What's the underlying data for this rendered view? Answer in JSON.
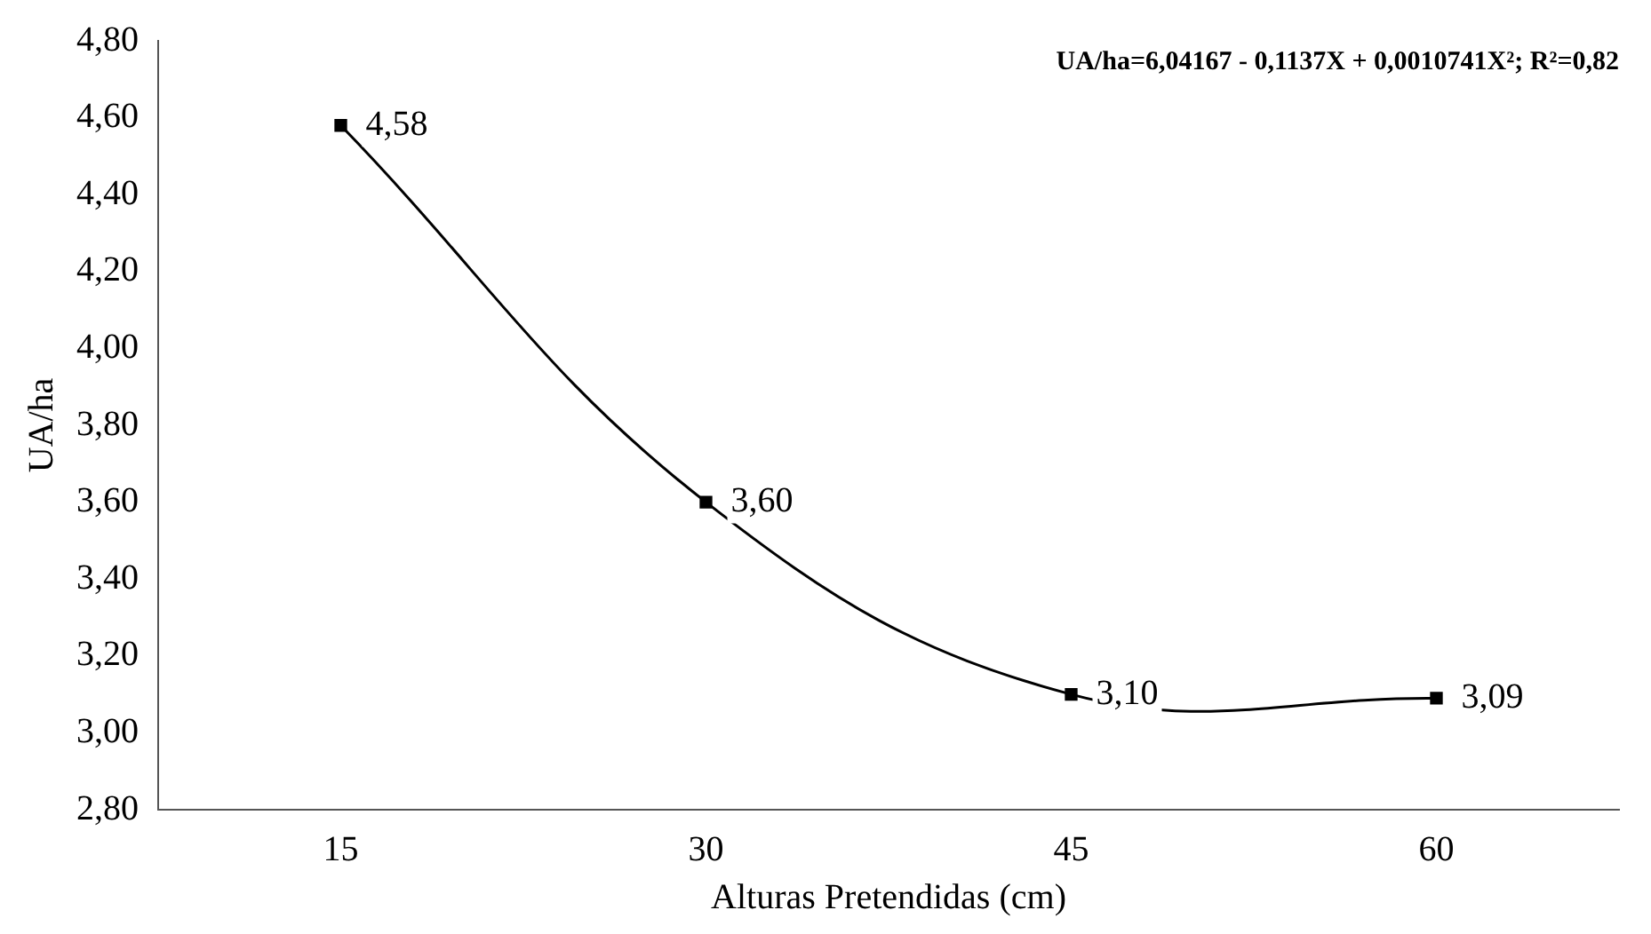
{
  "chart_data": {
    "type": "line",
    "xlabel": "Alturas Pretendidas (cm)",
    "ylabel": "UA/ha",
    "categories": [
      "15",
      "30",
      "45",
      "60"
    ],
    "series": [
      {
        "color": "#000000",
        "values": [
          4.58,
          3.6,
          3.1,
          3.09
        ],
        "value_labels": [
          "4,58",
          "3,60",
          "3,10",
          "3,09"
        ]
      }
    ],
    "ylim": [
      2.8,
      4.8
    ],
    "yticks": [
      {
        "value": 2.8,
        "label": "2,80"
      },
      {
        "value": 3.0,
        "label": "3,00"
      },
      {
        "value": 3.2,
        "label": "3,20"
      },
      {
        "value": 3.4,
        "label": "3,40"
      },
      {
        "value": 3.6,
        "label": "3,60"
      },
      {
        "value": 3.8,
        "label": "3,80"
      },
      {
        "value": 4.0,
        "label": "4,00"
      },
      {
        "value": 4.2,
        "label": "4,20"
      },
      {
        "value": 4.4,
        "label": "4,40"
      },
      {
        "value": 4.6,
        "label": "4,60"
      },
      {
        "value": 4.8,
        "label": "4,80"
      }
    ],
    "annotations": [
      "UA/ha=6,04167 - 0,1137X + 0,0010741X²; R²=0,82"
    ],
    "marker": "square",
    "line_style": "solid",
    "grid": false,
    "legend": false
  }
}
